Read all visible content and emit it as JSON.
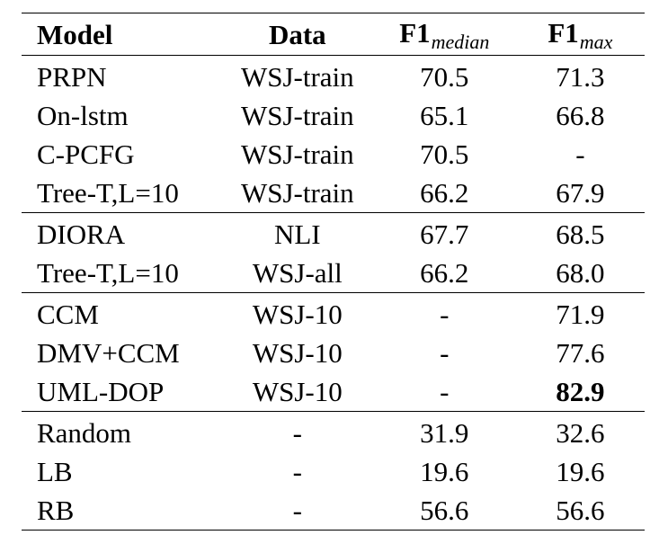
{
  "header": {
    "model": "Model",
    "data": "Data",
    "f1_base": "F1",
    "f1_median_sub": "median",
    "f1_max_sub": "max"
  },
  "groups": [
    [
      {
        "model": "PRPN",
        "data": "WSJ-train",
        "f1_median": "70.5",
        "f1_max": "71.3"
      },
      {
        "model": "On-lstm",
        "data": "WSJ-train",
        "f1_median": "65.1",
        "f1_max": "66.8"
      },
      {
        "model": "C-PCFG",
        "data": "WSJ-train",
        "f1_median": "70.5",
        "f1_max": "-"
      },
      {
        "model": "Tree-T,L=10",
        "data": "WSJ-train",
        "f1_median": "66.2",
        "f1_max": "67.9"
      }
    ],
    [
      {
        "model": "DIORA",
        "data": "NLI",
        "f1_median": "67.7",
        "f1_max": "68.5"
      },
      {
        "model": "Tree-T,L=10",
        "data": "WSJ-all",
        "f1_median": "66.2",
        "f1_max": "68.0"
      }
    ],
    [
      {
        "model": "CCM",
        "data": "WSJ-10",
        "f1_median": "-",
        "f1_max": "71.9"
      },
      {
        "model": "DMV+CCM",
        "data": "WSJ-10",
        "f1_median": "-",
        "f1_max": "77.6"
      },
      {
        "model": "UML-DOP",
        "data": "WSJ-10",
        "f1_median": "-",
        "f1_max": "82.9",
        "best": true
      }
    ],
    [
      {
        "model": "Random",
        "data": "-",
        "f1_median": "31.9",
        "f1_max": "32.6"
      },
      {
        "model": "LB",
        "data": "-",
        "f1_median": "19.6",
        "f1_max": "19.6"
      },
      {
        "model": "RB",
        "data": "-",
        "f1_median": "56.6",
        "f1_max": "56.6"
      }
    ]
  ]
}
